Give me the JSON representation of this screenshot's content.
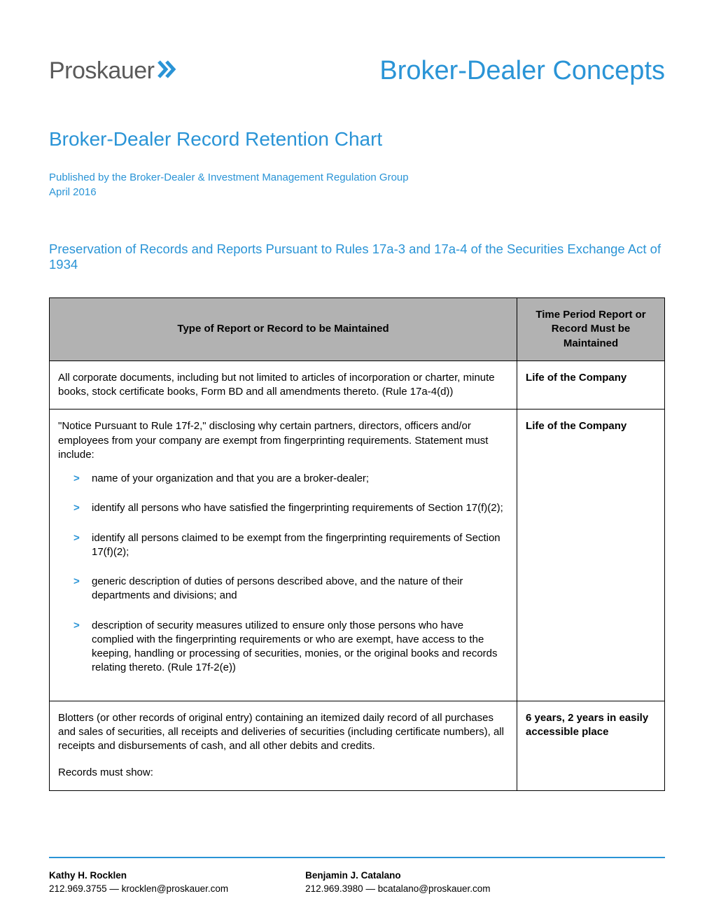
{
  "colors": {
    "accent": "#2a94d6",
    "logo_gray": "#5a5a5a",
    "text": "#000000",
    "table_header_bg": "#b2b2b2",
    "table_border": "#000000",
    "bullet": "#2a94d6",
    "footer_rule": "#2a94d6"
  },
  "logo": {
    "text": "Proskauer",
    "chevron_color": "#2a94d6"
  },
  "header": {
    "title": "Broker-Dealer Concepts"
  },
  "doc": {
    "title": "Broker-Dealer Record Retention Chart",
    "publisher": "Published by the Broker-Dealer & Investment Management Regulation Group",
    "date": "April 2016",
    "section_title": "Preservation of Records and Reports Pursuant to Rules 17a-3 and 17a-4 of the Securities Exchange Act of 1934"
  },
  "table": {
    "columns": [
      "Type of Report or Record to be Maintained",
      "Time Period Report or Record Must be Maintained"
    ],
    "rows": [
      {
        "type_text": "All corporate documents, including but not limited to articles of incorporation or charter, minute books, stock certificate books, Form BD and all amendments thereto.  (Rule 17a-4(d))",
        "period": "Life of the Company"
      },
      {
        "type_intro": "\"Notice Pursuant to Rule 17f-2,\" disclosing why certain partners, directors, officers and/or employees from your company are exempt from fingerprinting requirements.    Statement must include:",
        "bullets": [
          "name of your organization and that you are a broker-dealer;",
          "identify all persons who have satisfied the fingerprinting requirements of Section 17(f)(2);",
          "identify all persons claimed to be exempt from the fingerprinting requirements of Section 17(f)(2);",
          "generic description of duties of persons described above, and the nature of their departments and divisions; and",
          "description of security measures utilized to ensure only those persons who have complied with the fingerprinting requirements or who are exempt, have access to the keeping, handling or processing of securities, monies, or the original books and records relating thereto.  (Rule 17f-2(e))"
        ],
        "period": "Life of the Company"
      },
      {
        "type_text": "Blotters (or other records of original entry) containing an itemized daily record of all purchases and sales of securities, all receipts and deliveries of securities (including certificate numbers), all receipts and disbursements of cash, and all other debits and credits.",
        "type_trailer": "Records must show:",
        "period": "6 years, 2 years in easily accessible place"
      }
    ]
  },
  "footer": {
    "contacts": [
      {
        "name": "Kathy H. Rocklen",
        "line": "212.969.3755 — krocklen@proskauer.com"
      },
      {
        "name": "Benjamin J. Catalano",
        "line": "212.969.3980 — bcatalano@proskauer.com"
      }
    ]
  }
}
